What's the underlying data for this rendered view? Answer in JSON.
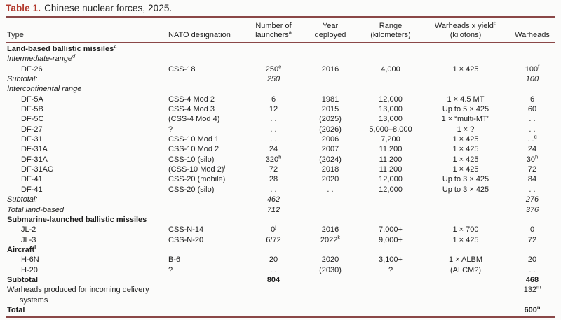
{
  "colors": {
    "rule": "#8a4747",
    "title_red": "#b23a2e"
  },
  "title": {
    "label": "Table 1.",
    "text": "Chinese nuclear forces, 2025."
  },
  "columns": [
    {
      "id": "type",
      "lines": [
        "Type"
      ]
    },
    {
      "id": "nato",
      "lines": [
        "NATO designation"
      ]
    },
    {
      "id": "launchers",
      "lines": [
        "Number of",
        "launchers^a"
      ]
    },
    {
      "id": "year",
      "lines": [
        "Year",
        "deployed"
      ]
    },
    {
      "id": "range",
      "lines": [
        "Range",
        "(kilometers)"
      ]
    },
    {
      "id": "yield",
      "lines": [
        "Warheads x yield^b",
        "(kilotons)"
      ]
    },
    {
      "id": "warheads",
      "lines": [
        "Warheads"
      ]
    }
  ],
  "rows": [
    {
      "style": "section",
      "cells": [
        "Land-based ballistic missiles^c",
        "",
        "",
        "",
        "",
        "",
        ""
      ]
    },
    {
      "style": "subhead",
      "cells": [
        "Intermediate-range^d",
        "",
        "",
        "",
        "",
        "",
        ""
      ]
    },
    {
      "style": "data",
      "cells": [
        "DF-26",
        "CSS-18",
        "250^e",
        "2016",
        "4,000",
        "1 × 425",
        "100^f"
      ]
    },
    {
      "style": "subtotal",
      "cells": [
        "Subtotal:",
        "",
        "250",
        "",
        "",
        "",
        "100"
      ]
    },
    {
      "style": "subhead",
      "cells": [
        "Intercontinental range",
        "",
        "",
        "",
        "",
        "",
        ""
      ]
    },
    {
      "style": "data",
      "cells": [
        "DF-5A",
        "CSS-4 Mod 2",
        "6",
        "1981",
        "12,000",
        "1 × 4.5 MT",
        "6"
      ]
    },
    {
      "style": "data",
      "cells": [
        "DF-5B",
        "CSS-4 Mod 3",
        "12",
        "2015",
        "13,000",
        "Up to 5 × 425",
        "60"
      ]
    },
    {
      "style": "data",
      "cells": [
        "DF-5C",
        "(CSS-4 Mod 4)",
        ". .",
        "(2025)",
        "13,000",
        "1 × “multi-MT”",
        ". ."
      ]
    },
    {
      "style": "data",
      "cells": [
        "DF-27",
        "?",
        ". .",
        "(2026)",
        "5,000–8,000",
        "1 × ?",
        ". ."
      ]
    },
    {
      "style": "data",
      "cells": [
        "DF-31",
        "CSS-10 Mod 1",
        ". .",
        "2006",
        "7,200",
        "1 × 425",
        ". .^g"
      ]
    },
    {
      "style": "data",
      "cells": [
        "DF-31A",
        "CSS-10 Mod 2",
        "24",
        "2007",
        "11,200",
        "1 × 425",
        "24"
      ]
    },
    {
      "style": "data",
      "cells": [
        "DF-31A",
        "CSS-10 (silo)",
        "320^h",
        "(2024)",
        "11,200",
        "1 × 425",
        "30^h"
      ]
    },
    {
      "style": "data",
      "cells": [
        "DF-31AG",
        "(CSS-10 Mod 2)^i",
        "72",
        "2018",
        "11,200",
        "1 × 425",
        "72"
      ]
    },
    {
      "style": "data",
      "cells": [
        "DF-41",
        "CSS-20 (mobile)",
        "28",
        "2020",
        "12,000",
        "Up to 3 × 425",
        "84"
      ]
    },
    {
      "style": "data",
      "cells": [
        "DF-41",
        "CSS-20 (silo)",
        ". .",
        ". .",
        "12,000",
        "Up to 3 × 425",
        ". ."
      ]
    },
    {
      "style": "subtotal",
      "cells": [
        "Subtotal:",
        "",
        "462",
        "",
        "",
        "",
        "276"
      ]
    },
    {
      "style": "subtotal",
      "cells": [
        "Total land-based",
        "",
        "712",
        "",
        "",
        "",
        "376"
      ]
    },
    {
      "style": "section",
      "cells": [
        "Submarine-launched ballistic missiles",
        "",
        "",
        "",
        "",
        "",
        ""
      ]
    },
    {
      "style": "data",
      "cells": [
        "JL-2",
        "CSS-N-14",
        "0^j",
        "2016",
        "7,000+",
        "1 × 700",
        "0"
      ]
    },
    {
      "style": "data",
      "cells": [
        "JL-3",
        "CSS-N-20",
        "6/72",
        "2022^k",
        "9,000+",
        "1 × 425",
        "72"
      ]
    },
    {
      "style": "section",
      "cells": [
        "Aircraft^l",
        "",
        "",
        "",
        "",
        "",
        ""
      ]
    },
    {
      "style": "data",
      "cells": [
        "H-6N",
        "B-6",
        "20",
        "2020",
        "3,100+",
        "1 × ALBM",
        "20"
      ]
    },
    {
      "style": "data",
      "cells": [
        "H-20",
        "?",
        ". .",
        "(2030)",
        "?",
        "(ALCM?)",
        ". ."
      ]
    },
    {
      "style": "total",
      "cells": [
        "Subtotal",
        "",
        "804",
        "",
        "",
        "",
        "468"
      ]
    },
    {
      "style": "plain",
      "cells": [
        "Warheads produced for incoming delivery systems",
        "",
        "",
        "",
        "",
        "",
        "132^m"
      ]
    },
    {
      "style": "total",
      "cells": [
        "Total",
        "",
        "",
        "",
        "",
        "",
        "600^n"
      ]
    }
  ]
}
